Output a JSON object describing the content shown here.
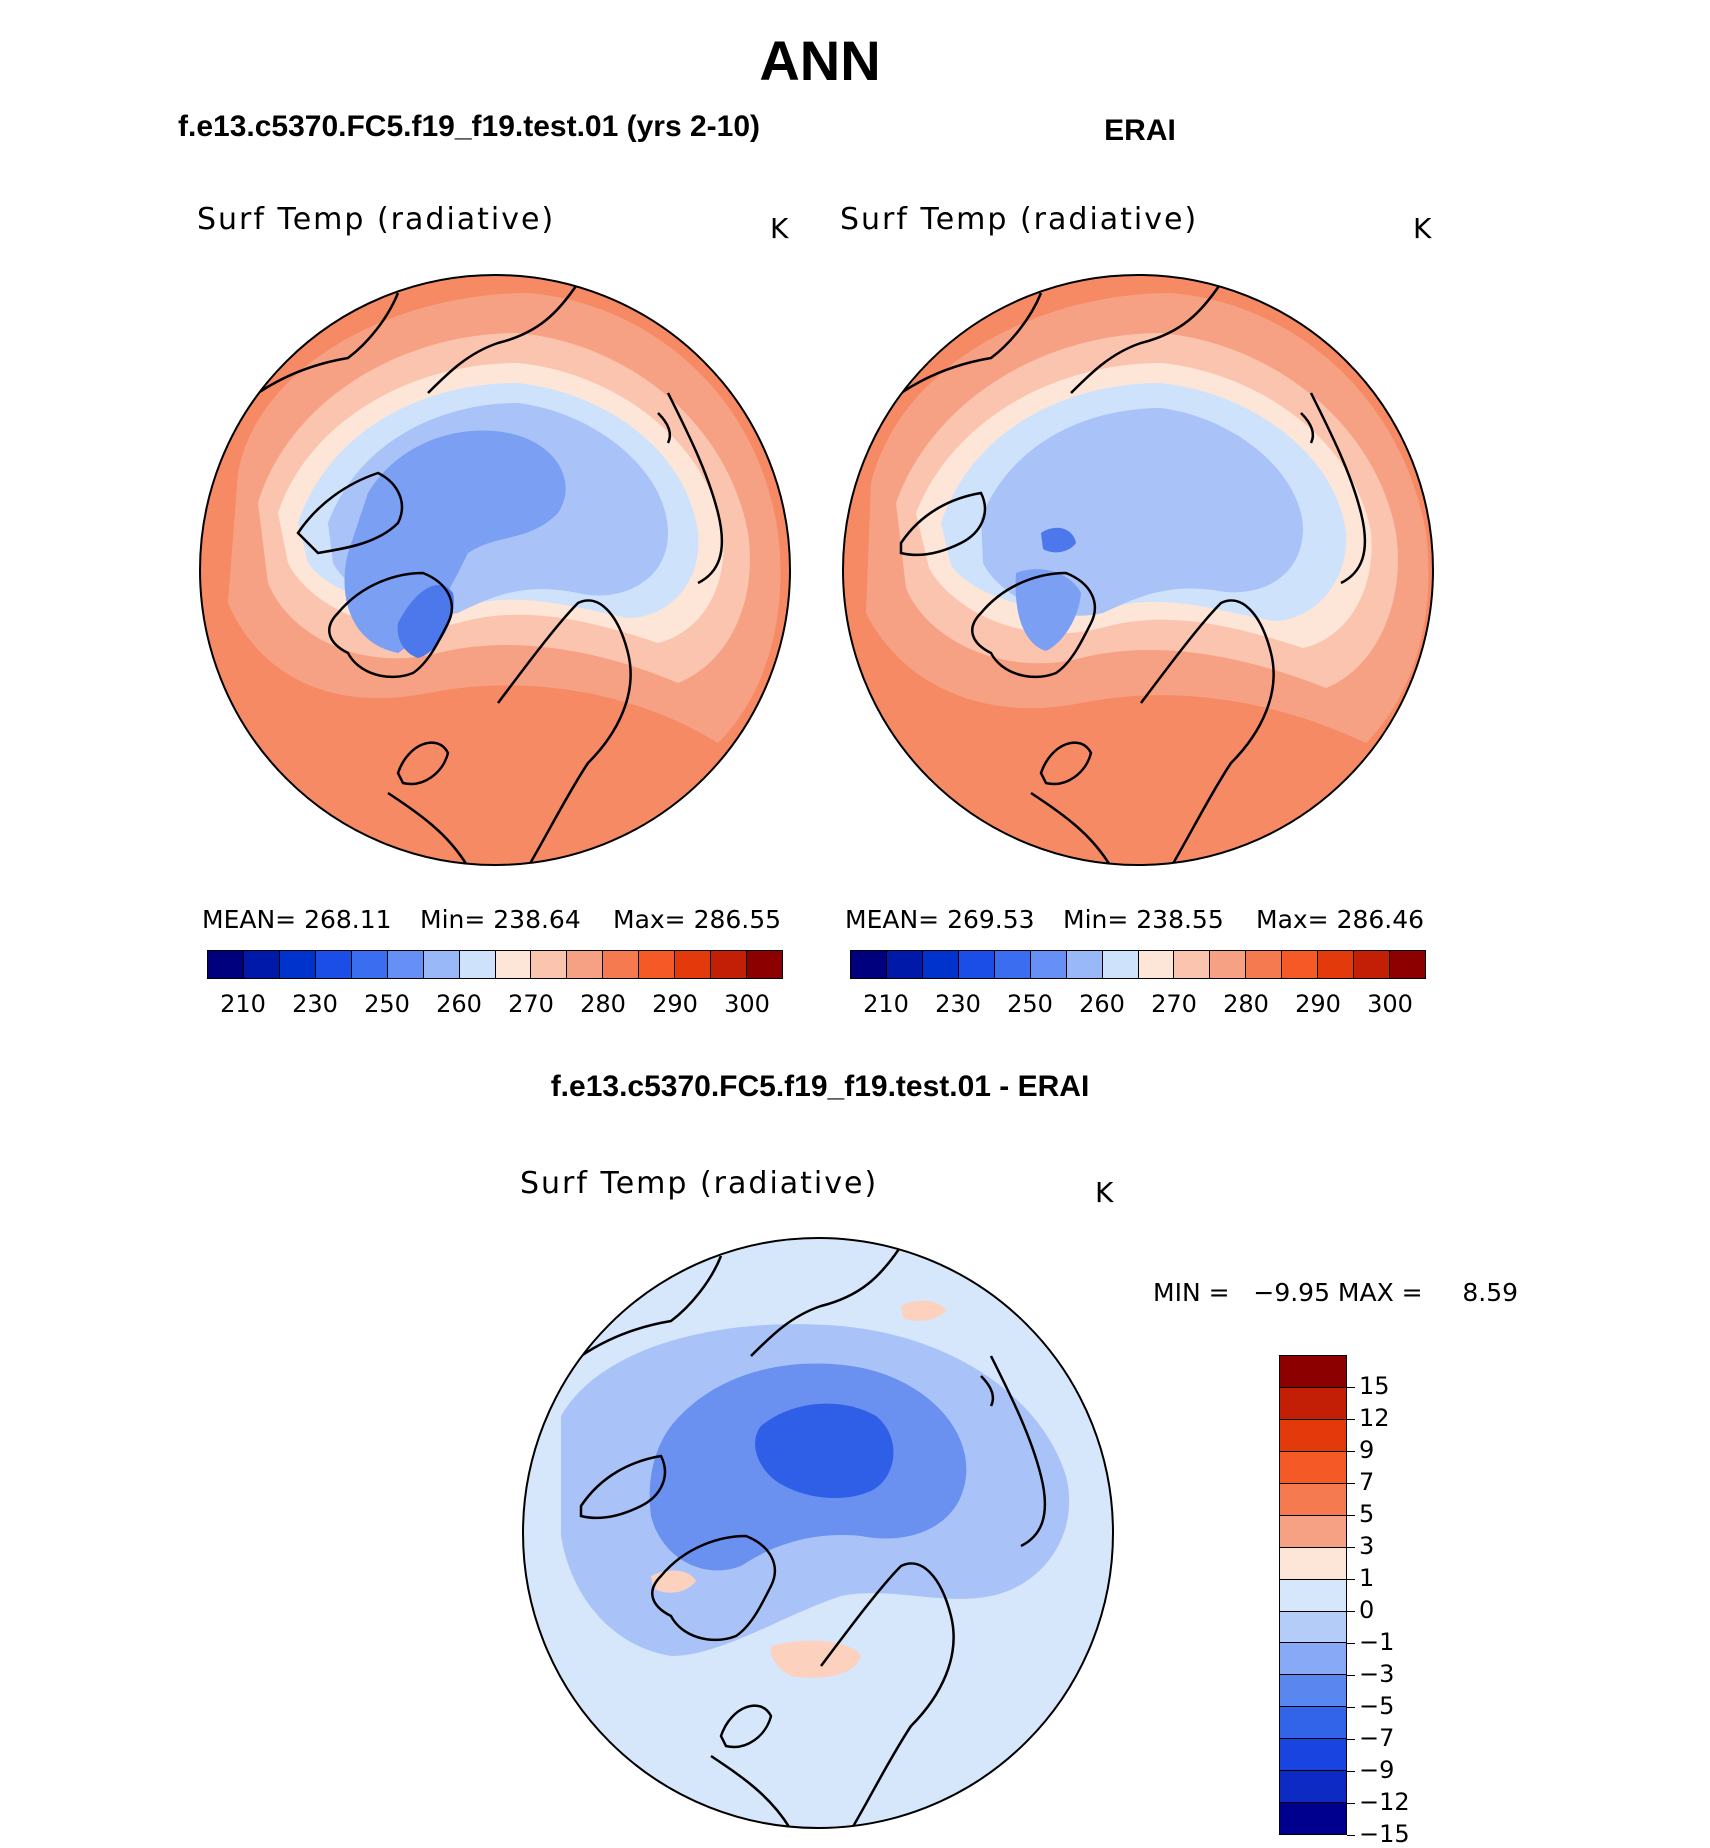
{
  "header": {
    "title": "ANN",
    "case_name": "f.e13.c5370.FC5.f19_f19.test.01 (yrs 2-10)",
    "ref_name": "ERAI",
    "diff_title": "f.e13.c5370.FC5.f19_f19.test.01 - ERAI"
  },
  "panels": {
    "case": {
      "variable": "Surf Temp (radiative)",
      "unit": "K",
      "mean_text": "MEAN= 268.11",
      "min_text": "Min= 238.64",
      "max_text": "Max= 286.55"
    },
    "ref": {
      "variable": "Surf Temp (radiative)",
      "unit": "K",
      "mean_text": "MEAN= 269.53",
      "min_text": "Min= 238.55",
      "max_text": "Max= 286.46"
    },
    "diff": {
      "variable": "Surf Temp (radiative)",
      "unit": "K",
      "minmax_text": "MIN =   −9.95 MAX =     8.59"
    }
  },
  "abs_colorbar": {
    "colors": [
      "#00007f",
      "#0019a8",
      "#0033cc",
      "#1a4ee6",
      "#3b6df0",
      "#6690f5",
      "#99b8f8",
      "#cfe2fb",
      "#fde6d8",
      "#fbc4ae",
      "#f7a184",
      "#f57a50",
      "#f55a26",
      "#e33a0c",
      "#c21f06",
      "#8c0000"
    ],
    "tick_labels": [
      "210",
      "230",
      "250",
      "260",
      "270",
      "280",
      "290",
      "300"
    ]
  },
  "diff_colorbar": {
    "colors": [
      "#8c0000",
      "#c21f06",
      "#e33a0c",
      "#f55a26",
      "#f57a50",
      "#f7a184",
      "#fde6d8",
      "#d6e6fb",
      "#b3ccf8",
      "#88a9f5",
      "#5a86f0",
      "#3264ea",
      "#1a44e0",
      "#0e2ac4",
      "#00008f"
    ],
    "tick_labels": [
      "15",
      "12",
      "9",
      "7",
      "5",
      "3",
      "1",
      "0",
      "−1",
      "−3",
      "−5",
      "−7",
      "−9",
      "−12",
      "−15"
    ]
  },
  "maps": {
    "projection": "north polar stereographic",
    "field_colors": {
      "warm_far": "#f58a64",
      "warm_mid": "#f7a184",
      "warm_near": "#fbc4ae",
      "neutral": "#fde6d8",
      "cool_light": "#cfe2fb",
      "cool_mid": "#a9c3f8",
      "cool_deep": "#7a9ff3",
      "cold": "#4c78ec",
      "diff_bg": "#d6e6fb",
      "diff_mid": "#a9c3f8",
      "diff_deep": "#6a90f0",
      "diff_core": "#2f5fe6",
      "diff_warm": "#fcd2bf"
    }
  }
}
